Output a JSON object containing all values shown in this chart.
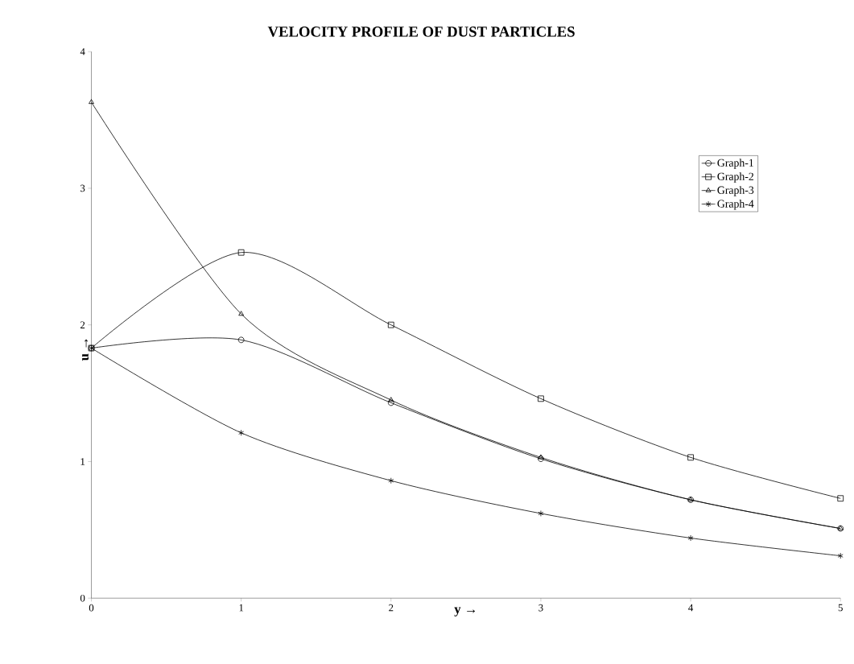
{
  "chart_data": {
    "type": "line",
    "title": "VELOCITY PROFILE OF DUST PARTICLES",
    "xlabel": "y  →",
    "ylabel": "u  →",
    "x": [
      0,
      1,
      2,
      3,
      4,
      5
    ],
    "series": [
      {
        "name": "Graph-1",
        "color": "#000000",
        "marker": "circle",
        "values": [
          1.83,
          1.89,
          1.43,
          1.02,
          0.72,
          0.51
        ]
      },
      {
        "name": "Graph-2",
        "color": "#000000",
        "marker": "square",
        "values": [
          1.83,
          2.53,
          2.0,
          1.46,
          1.03,
          0.73
        ]
      },
      {
        "name": "Graph-3",
        "color": "#000000",
        "marker": "triangle",
        "values": [
          3.63,
          2.08,
          1.45,
          1.03,
          0.72,
          0.51
        ]
      },
      {
        "name": "Graph-4",
        "color": "#000000",
        "marker": "cross",
        "values": [
          1.83,
          1.21,
          0.86,
          0.62,
          0.44,
          0.31
        ]
      }
    ],
    "xlim": [
      0,
      5
    ],
    "ylim": [
      0,
      4
    ],
    "xticks": [
      0,
      1,
      2,
      3,
      4,
      5
    ],
    "yticks": [
      0,
      1,
      2,
      3,
      4
    ],
    "grid": false,
    "legend": "top right",
    "line_style": "solid"
  }
}
